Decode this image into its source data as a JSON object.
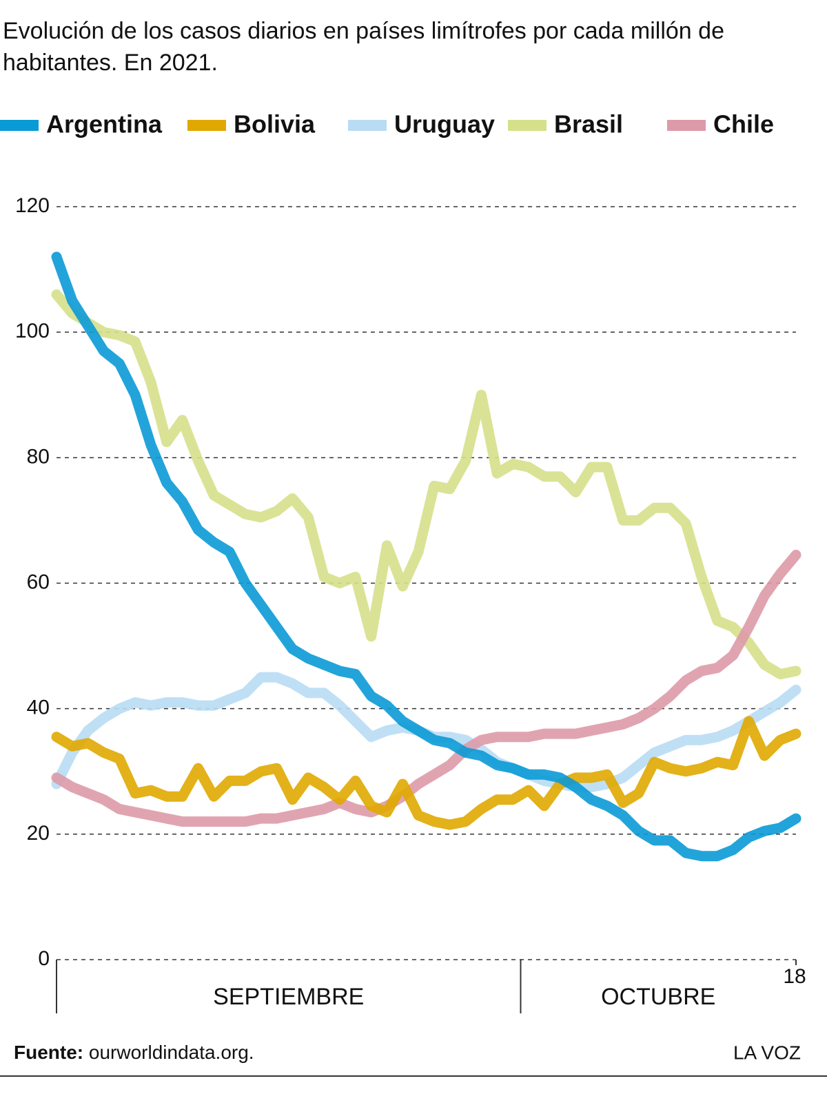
{
  "chart_data": {
    "type": "line",
    "title": "Evolución de los casos diarios en países limítrofes por cada millón de habitantes. En 2021.",
    "categories": [
      null,
      null,
      null,
      null,
      null,
      null,
      null,
      null,
      null,
      null,
      null,
      null,
      null,
      null,
      null,
      null,
      null,
      null,
      null,
      null,
      null,
      null,
      null,
      null,
      null,
      null,
      null,
      null,
      null,
      null,
      null,
      null,
      null,
      null,
      null,
      null,
      null,
      null,
      null,
      null,
      null,
      null,
      null,
      null,
      null,
      null,
      null,
      "18"
    ],
    "periods": [
      {
        "label": "SEPTIEMBRE",
        "days": 30
      },
      {
        "label": "OCTUBRE",
        "days": 18
      }
    ],
    "ylim": [
      0,
      120
    ],
    "yticks": [
      0,
      20,
      40,
      60,
      80,
      100,
      120
    ],
    "grid": true,
    "series": [
      {
        "name": "Argentina",
        "color": "#0a9ad6",
        "values": [
          112,
          105,
          101,
          97,
          95,
          90,
          82,
          76,
          73,
          68.5,
          66.5,
          65,
          60,
          56.5,
          53,
          49.5,
          48,
          47,
          46,
          45.5,
          42,
          40.5,
          38,
          36.5,
          35,
          34.5,
          33,
          32.5,
          31,
          30.5,
          29.5,
          29.5,
          29,
          27.5,
          25.5,
          24.5,
          23,
          20.5,
          19,
          19,
          17,
          16.5,
          16.5,
          17.5,
          19.5,
          20.5,
          21,
          22.5
        ]
      },
      {
        "name": "Bolivia",
        "color": "#e0a800",
        "values": [
          35.5,
          34,
          34.5,
          33,
          32,
          26.5,
          27,
          26,
          26,
          30.5,
          26,
          28.5,
          28.5,
          30,
          30.5,
          25.5,
          29,
          27.5,
          25.5,
          28.5,
          24.5,
          23.5,
          28,
          23,
          22,
          21.5,
          22,
          24,
          25.5,
          25.5,
          27,
          24.5,
          28,
          29,
          29,
          29.5,
          25,
          26.5,
          31.5,
          30.5,
          30,
          30.5,
          31.5,
          31,
          38,
          32.5,
          35,
          36
        ]
      },
      {
        "name": "Uruguay",
        "color": "#b8dcf4",
        "values": [
          28,
          33,
          36.5,
          38.5,
          40,
          41,
          40.5,
          41,
          41,
          40.5,
          40.5,
          41.5,
          42.5,
          45,
          45,
          44,
          42.5,
          42.5,
          40.5,
          38,
          35.5,
          36.5,
          37,
          36.5,
          35.5,
          35.5,
          35,
          33.5,
          31.5,
          30.5,
          29.5,
          28.5,
          28,
          27.5,
          27.5,
          28,
          29,
          31,
          33,
          34,
          35,
          35,
          35.5,
          36.5,
          38,
          39.5,
          41,
          43
        ]
      },
      {
        "name": "Brasil",
        "color": "#d6e08a",
        "values": [
          106,
          103,
          101.5,
          100,
          99.5,
          98.5,
          92,
          82.5,
          86,
          79.5,
          74,
          72.5,
          71,
          70.5,
          71.5,
          73.5,
          70.5,
          61,
          60,
          61,
          51.5,
          66,
          59.5,
          65,
          75.5,
          75,
          79.5,
          90,
          77.5,
          79,
          78.5,
          77,
          77,
          74.5,
          78.5,
          78.5,
          70,
          70,
          72,
          72,
          69.5,
          61,
          54,
          53,
          50.5,
          47,
          45.5,
          46
        ]
      },
      {
        "name": "Chile",
        "color": "#dd9aa8",
        "values": [
          29,
          27.5,
          26.5,
          25.5,
          24,
          23.5,
          23,
          22.5,
          22,
          22,
          22,
          22,
          22,
          22.5,
          22.5,
          23,
          23.5,
          24,
          25,
          24,
          23.5,
          24.5,
          26,
          28,
          29.5,
          31,
          33.5,
          35,
          35.5,
          35.5,
          35.5,
          36,
          36,
          36,
          36.5,
          37,
          37.5,
          38.5,
          40,
          42,
          44.5,
          46,
          46.5,
          48.5,
          53,
          58,
          61.5,
          64.5
        ]
      }
    ],
    "source": {
      "label": "Fuente:",
      "text": "ourworldindata.org."
    },
    "credit": "LA VOZ"
  }
}
